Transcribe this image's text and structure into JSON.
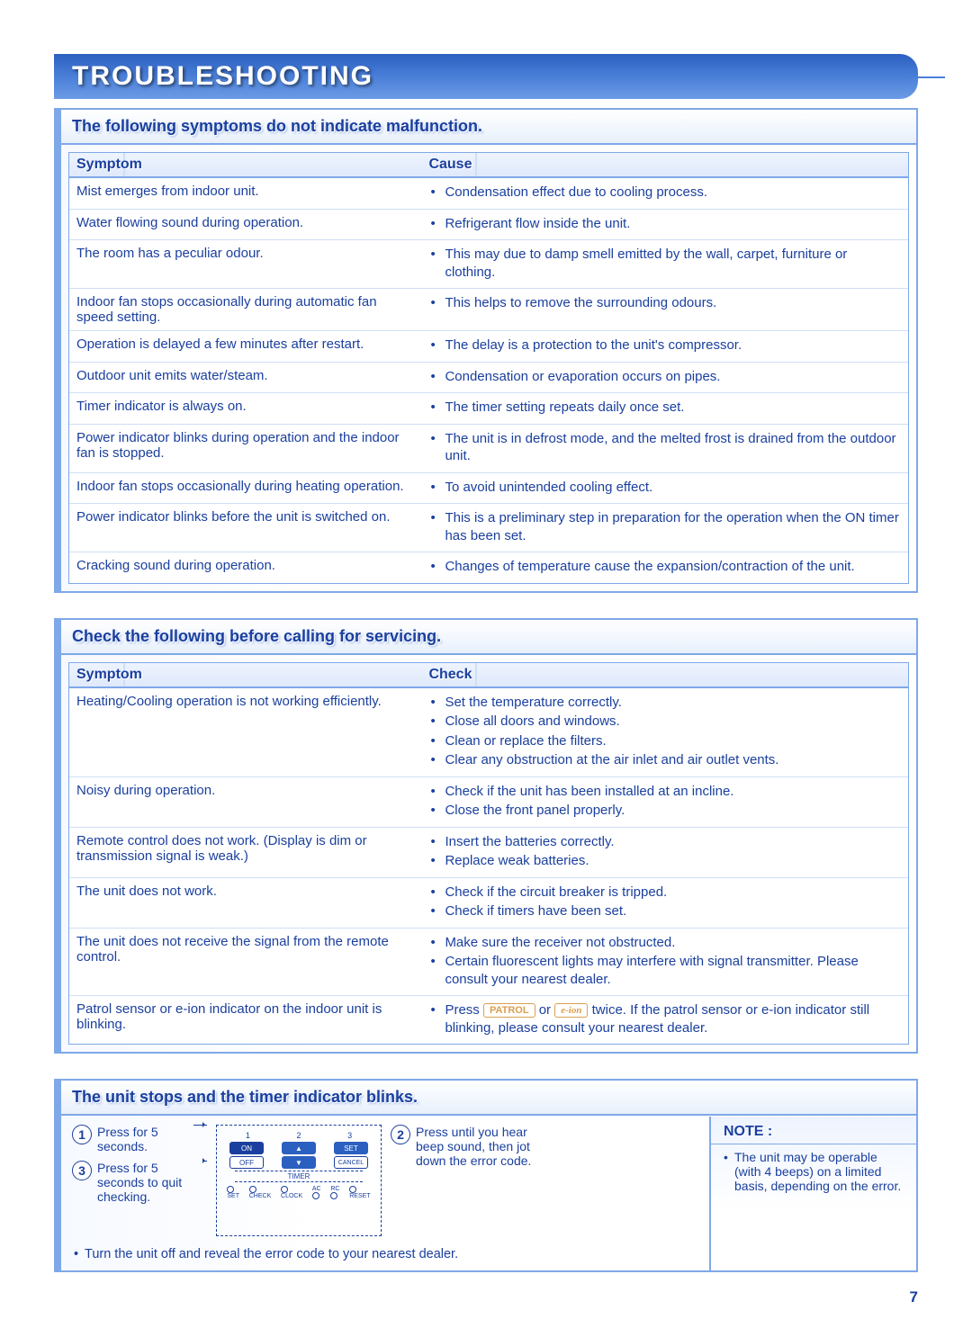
{
  "page_title": "TROUBLESHOOTING",
  "page_number": "7",
  "colors": {
    "brand_blue": "#1a3f9e",
    "border_blue": "#7fa8e8",
    "gradient_start": "#2b5fc0",
    "accent_orange": "#d9a050"
  },
  "section1": {
    "title": "The following symptoms do not indicate malfunction.",
    "col_a": "Symptom",
    "col_b": "Cause",
    "rows": [
      {
        "symptom": "Mist emerges from indoor unit.",
        "causes": [
          "Condensation effect due to cooling process."
        ]
      },
      {
        "symptom": "Water flowing sound during operation.",
        "causes": [
          "Refrigerant flow inside the unit."
        ]
      },
      {
        "symptom": "The room has a peculiar odour.",
        "causes": [
          "This may due to damp smell emitted by the wall, carpet, furniture or clothing."
        ]
      },
      {
        "symptom": "Indoor fan stops occasionally during automatic fan speed setting.",
        "causes": [
          "This helps to remove the surrounding odours."
        ]
      },
      {
        "symptom": "Operation is delayed a few minutes after restart.",
        "causes": [
          "The delay is a protection to the unit's compressor."
        ]
      },
      {
        "symptom": "Outdoor unit emits water/steam.",
        "causes": [
          "Condensation or evaporation occurs on pipes."
        ]
      },
      {
        "symptom": "Timer indicator is always on.",
        "causes": [
          "The timer setting repeats daily once set."
        ]
      },
      {
        "symptom": "Power indicator blinks during operation and the indoor fan is stopped.",
        "causes": [
          "The unit is in defrost mode, and the melted frost is drained from the outdoor unit."
        ]
      },
      {
        "symptom": "Indoor fan stops occasionally during heating operation.",
        "causes": [
          "To avoid unintended cooling effect."
        ]
      },
      {
        "symptom": "Power indicator blinks before the unit is switched on.",
        "causes": [
          "This is a preliminary step in preparation for the operation when the ON timer has been set."
        ]
      },
      {
        "symptom": "Cracking sound during operation.",
        "causes": [
          "Changes of temperature cause the expansion/contraction of the unit."
        ]
      }
    ]
  },
  "section2": {
    "title": "Check the following before calling for servicing.",
    "col_a": "Symptom",
    "col_b": "Check",
    "rows": [
      {
        "symptom": "Heating/Cooling operation is not working efficiently.",
        "checks": [
          "Set the temperature correctly.",
          "Close all doors and windows.",
          "Clean or replace the filters.",
          "Clear any obstruction at the air inlet and air outlet vents."
        ]
      },
      {
        "symptom": "Noisy during operation.",
        "checks": [
          "Check if the unit has been installed at an incline.",
          "Close the front panel properly."
        ]
      },
      {
        "symptom": "Remote control does not work.\n(Display is dim or transmission signal is weak.)",
        "checks": [
          "Insert the batteries correctly.",
          "Replace weak batteries."
        ]
      },
      {
        "symptom": "The unit does not work.",
        "checks": [
          "Check if the circuit breaker is tripped.",
          "Check if timers have been set."
        ]
      },
      {
        "symptom": "The unit does not receive the signal from the remote control.",
        "checks": [
          "Make sure the receiver not obstructed.",
          "Certain fluorescent lights may interfere with signal transmitter. Please consult your nearest dealer."
        ]
      },
      {
        "symptom": "Patrol sensor or e-ion indicator on the indoor unit is blinking.",
        "checks_html": true,
        "check_pre": "Press ",
        "btn1": "PATROL",
        "mid": " or ",
        "btn2": "e-ion",
        "check_post": " twice. If the patrol sensor or e-ion indicator still blinking, please consult your nearest dealer."
      }
    ]
  },
  "section3": {
    "title": "The unit stops and the timer indicator blinks.",
    "step1": "Press for 5 seconds.",
    "step2": "Press until you hear beep sound, then jot down the error code.",
    "step3": "Press for 5 seconds to quit checking.",
    "footer": "Turn the unit off and reveal the error code to your nearest dealer.",
    "remote": {
      "nums": [
        "1",
        "2",
        "3"
      ],
      "on": "ON",
      "up": "▲",
      "set": "SET",
      "off": "OFF",
      "down": "▼",
      "cancel": "CANCEL",
      "timer": "TIMER",
      "bottom_labels": [
        "SET",
        "CHECK",
        "CLOCK",
        "AC",
        "RC",
        "RESET"
      ]
    },
    "note_title": "NOTE :",
    "note_body": "The unit may be operable (with 4 beeps) on a limited basis, depending on the error."
  }
}
